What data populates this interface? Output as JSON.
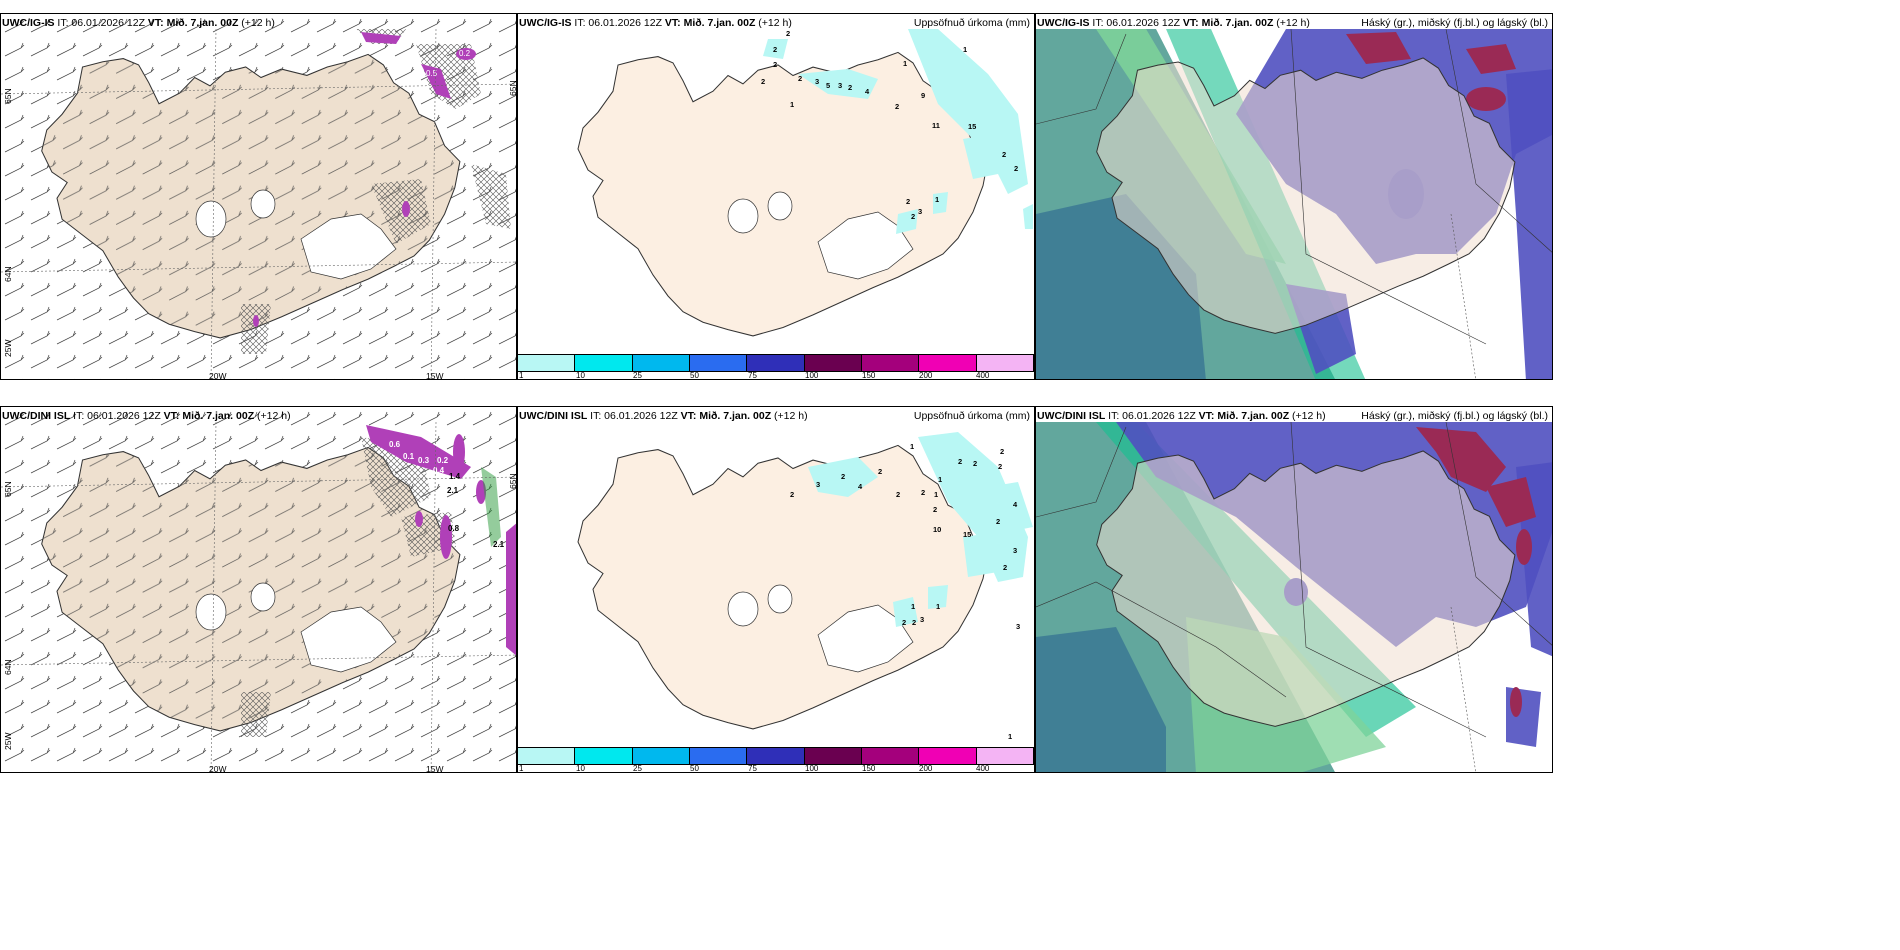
{
  "panels": {
    "p11": {
      "model": "UWC/IG-IS",
      "it": "IT: 06.01.2026 12Z",
      "vt": "VT: Mið. 7.jan. 00Z",
      "lead": "(+12 h)",
      "right": ""
    },
    "p12": {
      "model": "UWC/IG-IS",
      "it": "IT: 06.01.2026 12Z",
      "vt": "VT: Mið. 7.jan. 00Z",
      "lead": "(+12 h)",
      "right": "Uppsöfnuð úrkoma (mm)"
    },
    "p13": {
      "model": "UWC/IG-IS",
      "it": "IT: 06.01.2026 12Z",
      "vt": "VT: Mið. 7.jan. 00Z",
      "lead": "(+12 h)",
      "right": "Háský (gr.), miðský (fj.bl.) og lágský (bl.)"
    },
    "p21": {
      "model": "UWC/DINI ISL",
      "it": "IT: 06.01.2026 12Z",
      "vt": "VT: Mið. 7.jan. 00Z",
      "lead": "(+12 h)",
      "right": ""
    },
    "p22": {
      "model": "UWC/DINI ISL",
      "it": "IT: 06.01.2026 12Z",
      "vt": "VT: Mið. 7.jan. 00Z",
      "lead": "(+12 h)",
      "right": "Uppsöfnuð úrkoma (mm)"
    },
    "p23": {
      "model": "UWC/DINI ISL",
      "it": "IT: 06.01.2026 12Z",
      "vt": "VT: Mið. 7.jan. 00Z",
      "lead": "(+12 h)",
      "right": "Háský (gr.), miðský (fj.bl.) og lágský (bl.)"
    }
  },
  "axis_labels": {
    "lon_20w": "20W",
    "lon_15w": "15W",
    "lat_65n": "65N",
    "lat_64n": "64N",
    "lon_25w": "25W"
  },
  "colorbar": {
    "ticks": [
      "1",
      "10",
      "25",
      "50",
      "75",
      "100",
      "150",
      "200",
      "400"
    ],
    "colors": [
      "#b8f7f4",
      "#00e8ee",
      "#00b8ee",
      "#2a6cf0",
      "#2f2fb8",
      "#6a0050",
      "#a4007c",
      "#f000b4",
      "#f4b4f4"
    ]
  },
  "precip_labels_top": [
    "2",
    "2",
    "2",
    "2",
    "1",
    "2",
    "3",
    "5",
    "3",
    "2",
    "4",
    "1",
    "1",
    "2",
    "9",
    "11",
    "15",
    "2",
    "2",
    "2",
    "1",
    "2",
    "3"
  ],
  "precip_labels_bottom": [
    "1",
    "2",
    "2",
    "2",
    "2",
    "2",
    "3",
    "2",
    "4",
    "2",
    "2",
    "2",
    "1",
    "2",
    "1",
    "10",
    "15",
    "2",
    "4",
    "3",
    "2",
    "3",
    "1",
    "1",
    "2",
    "2",
    "3",
    "1"
  ],
  "snow_labels_top": [
    "0.5",
    "0.2",
    "0.1",
    "0.2"
  ],
  "snow_labels_bottom": [
    "0.6",
    "0.1",
    "0.3",
    "0.2",
    "0.4",
    "2.1",
    "1.4",
    "2.1",
    "0.8"
  ]
}
